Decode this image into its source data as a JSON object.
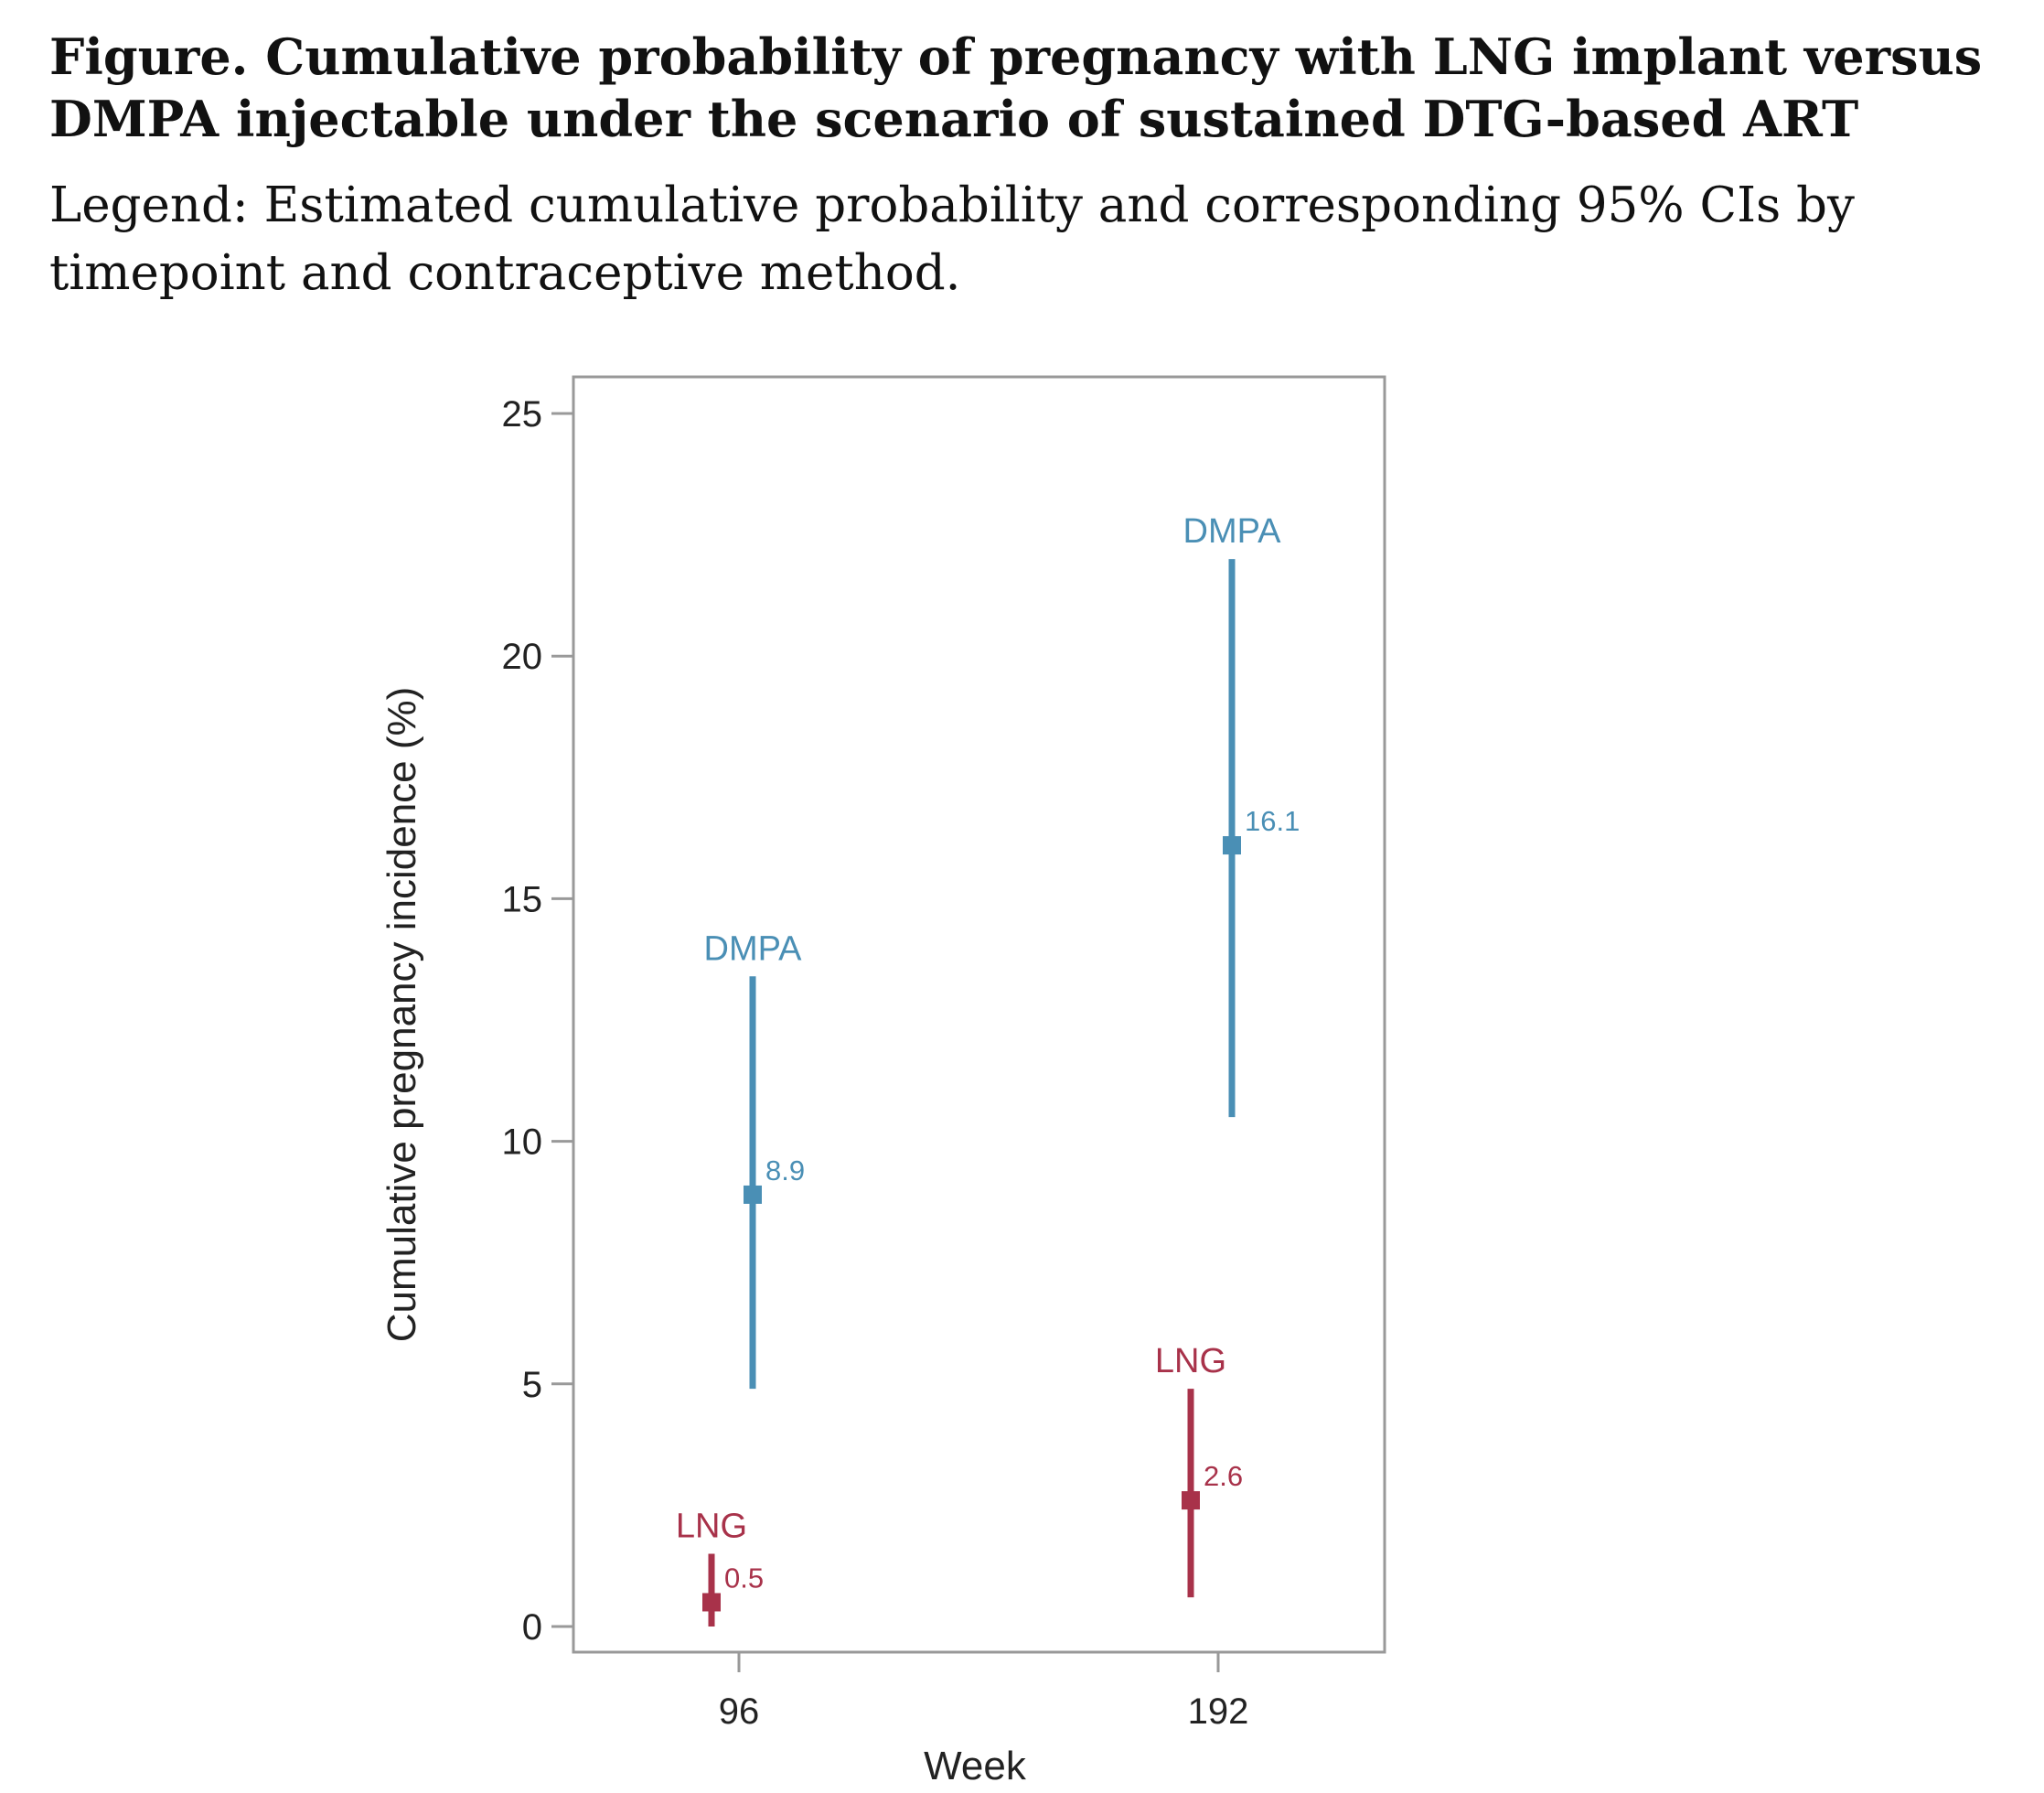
{
  "caption": {
    "title": "Figure. Cumulative probability of pregnancy with LNG implant versus DMPA injectable under the scenario of sustained DTG-based ART",
    "legend": "Legend: Estimated cumulative probability and corresponding 95% CIs by timepoint and contraceptive method."
  },
  "colors": {
    "DMPA": "#4a8fb5",
    "LNG": "#a8324a",
    "axis": "#999999"
  },
  "chart_data": {
    "type": "scatter",
    "xlabel": "Week",
    "ylabel": "Cumulative pregnancy incidence (%)",
    "ylim": [
      0,
      25
    ],
    "yticks": [
      0,
      5,
      10,
      15,
      20,
      25
    ],
    "categories": [
      "96",
      "192"
    ],
    "grid": false,
    "legend": "none",
    "series": [
      {
        "name": "DMPA",
        "values": [
          8.9,
          16.1
        ],
        "ci_low": [
          4.9,
          10.5
        ],
        "ci_high": [
          13.4,
          22.0
        ],
        "labels": [
          "8.9",
          "16.1"
        ]
      },
      {
        "name": "LNG",
        "values": [
          0.5,
          2.6
        ],
        "ci_low": [
          0.0,
          0.6
        ],
        "ci_high": [
          1.5,
          4.9
        ],
        "labels": [
          "0.5",
          "2.6"
        ]
      }
    ]
  }
}
